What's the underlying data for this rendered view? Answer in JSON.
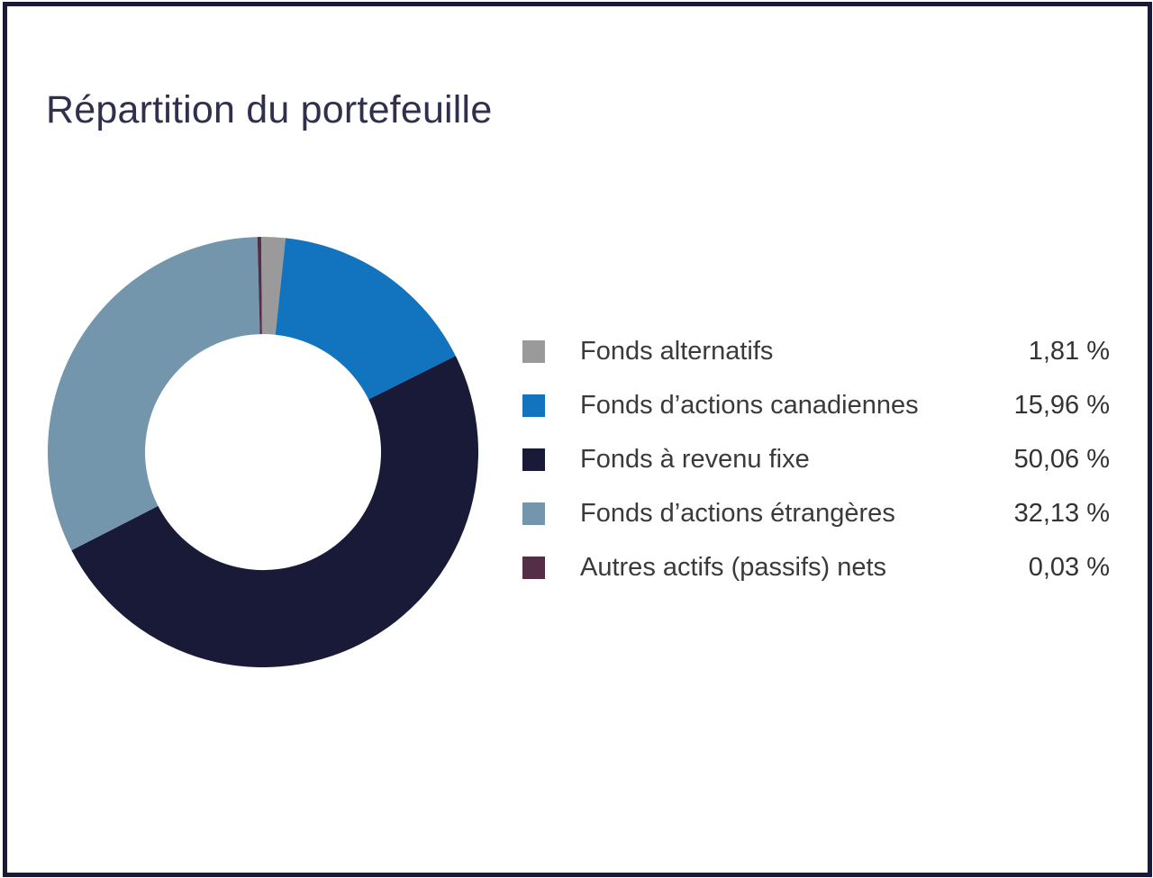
{
  "title": "Répartition du portefeuille",
  "frame_color": "#1A1A38",
  "chart_data": {
    "type": "pie",
    "subtype": "donut",
    "title": "Répartition du portefeuille",
    "categories": [
      "Fonds alternatifs",
      "Fonds d’actions canadiennes",
      "Fonds à revenu fixe",
      "Fonds d’actions étrangères",
      "Autres actifs (passifs) nets"
    ],
    "values": [
      1.81,
      15.96,
      50.06,
      32.13,
      0.03
    ],
    "value_labels": [
      "1,81 %",
      "15,96 %",
      "50,06 %",
      "32,13 %",
      "0,03 %"
    ],
    "colors": [
      "#9A9A9A",
      "#1274BE",
      "#191A38",
      "#7496AC",
      "#542D47"
    ],
    "legend_position": "right",
    "start_angle_deg": -0.5,
    "clockwise": true,
    "inner_radius_ratio": 0.548,
    "min_slice_angle_deg": 1.0
  }
}
